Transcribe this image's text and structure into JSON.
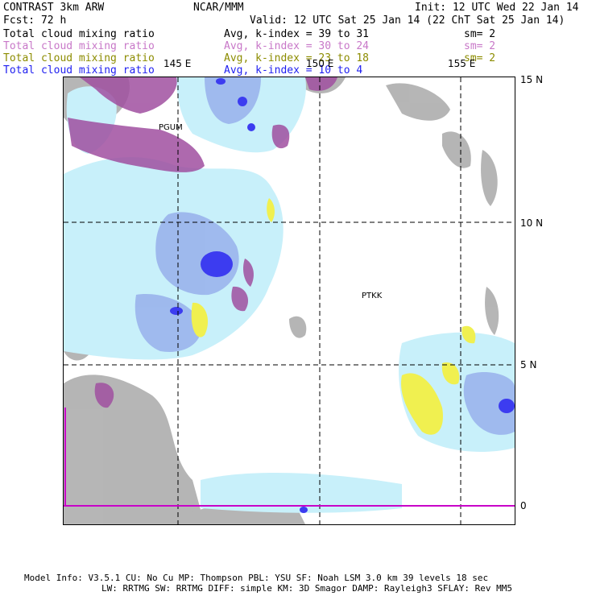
{
  "header": {
    "model_label": "CONTRAST  3km ARW",
    "org": "NCAR/MMM",
    "init": "Init: 12 UTC Wed 22 Jan 14",
    "fcst": "Fcst:   72 h",
    "valid": "Valid: 12 UTC Sat 25 Jan 14 (22 ChT Sat 25 Jan 14)"
  },
  "legend": [
    {
      "field": "Total cloud mixing ratio",
      "range": "Avg, k-index =   39 to   31",
      "sm": "sm= 2",
      "color": "#000000"
    },
    {
      "field": "Total cloud mixing ratio",
      "range": "Avg, k-index =   30 to   24",
      "sm": "sm= 2",
      "color": "#c878c8"
    },
    {
      "field": "Total cloud mixing ratio",
      "range": "Avg, k-index =   23 to   18",
      "sm": "sm= 2",
      "color": "#8c8c00"
    },
    {
      "field": "Total cloud mixing ratio",
      "range": "Avg, k-index =   10 to    4",
      "sm": "",
      "color": "#1e1ef0"
    }
  ],
  "map": {
    "lon_labels": [
      "145 E",
      "150 E",
      "155 E"
    ],
    "lat_labels": [
      "15 N",
      "10 N",
      "5 N",
      "0"
    ],
    "stations": [
      "PGUM",
      "PTKK"
    ],
    "colors": {
      "gray": "#a9a9a9",
      "purple": "#a050a0",
      "lightblue": "#c8f0fa",
      "midblue": "#9ab4ec",
      "blue": "#3c3cf0",
      "yellow": "#f0f050",
      "magenta": "#c800c8"
    }
  },
  "footer": {
    "line1": "Model Info: V3.5.1    CU: No Cu    MP: Thompson    PBL: YSU      SF: Noah LSM    3.0 km  39 levels  18 sec",
    "line2": "LW: RRTMG   SW: RRTMG  DIFF: simple KM: 3D Smagor DAMP: Rayleigh3  SFLAY: Rev MM5"
  }
}
